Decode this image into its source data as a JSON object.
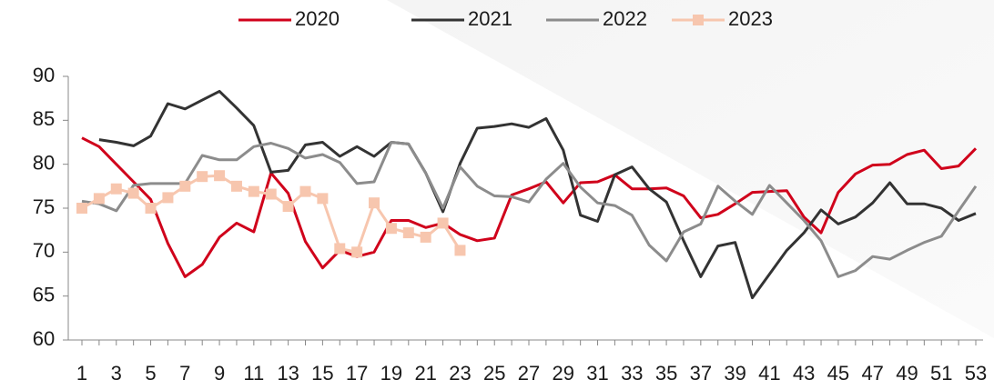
{
  "chart_data": {
    "type": "line",
    "categories": [
      1,
      null,
      3,
      null,
      5,
      null,
      7,
      null,
      9,
      null,
      11,
      null,
      13,
      null,
      15,
      null,
      17,
      null,
      19,
      null,
      21,
      null,
      23,
      null,
      25,
      null,
      27,
      null,
      29,
      null,
      31,
      null,
      33,
      null,
      35,
      null,
      37,
      null,
      39,
      null,
      41,
      null,
      43,
      null,
      45,
      null,
      47,
      null,
      49,
      null,
      51,
      null,
      53
    ],
    "ylim": [
      60,
      90
    ],
    "yticks": [
      60,
      65,
      70,
      75,
      80,
      85,
      90
    ],
    "grid": false,
    "legend": "top",
    "series": [
      {
        "name": "2020",
        "color": "#d0021b",
        "values": [
          83,
          82,
          80,
          78,
          76,
          71,
          67.2,
          68.6,
          71.7,
          73.3,
          72.3,
          79,
          76.7,
          71.2,
          68.2,
          70.2,
          69.5,
          70,
          73.6,
          73.6,
          72.8,
          73.3,
          72,
          71.3,
          71.6,
          76.5,
          77.2,
          78,
          75.6,
          77.9,
          78,
          78.8,
          77.2,
          77.2,
          77.3,
          76.4,
          73.9,
          74.3,
          75.5,
          76.8,
          76.9,
          77,
          74,
          72.2,
          76.8,
          78.9,
          79.9,
          80,
          81.1,
          81.6,
          79.5,
          79.8,
          81.8
        ]
      },
      {
        "name": "2021",
        "color": "#333333",
        "values": [
          null,
          82.8,
          82.5,
          82.1,
          83.2,
          86.9,
          86.3,
          87.3,
          88.3,
          86.4,
          84.4,
          79.1,
          79.3,
          82.2,
          82.5,
          80.9,
          82,
          80.9,
          82.5,
          82.3,
          79,
          74.6,
          80.1,
          84.1,
          84.3,
          84.6,
          84.2,
          85.2,
          81.6,
          74.2,
          73.5,
          78.8,
          79.7,
          77.2,
          75.7,
          71.3,
          67.2,
          70.7,
          71.1,
          64.8,
          67.5,
          70.2,
          72.2,
          74.8,
          73.2,
          74,
          75.6,
          77.9,
          75.5,
          75.5,
          75,
          73.6,
          74.4
        ]
      },
      {
        "name": "2022",
        "color": "#8c8c8c",
        "values": [
          75.8,
          75.5,
          74.7,
          77.6,
          77.8,
          77.8,
          77.8,
          81,
          80.5,
          80.5,
          82,
          82.4,
          81.8,
          80.7,
          81.1,
          80.2,
          77.8,
          78,
          82.5,
          82.3,
          79,
          75,
          79.7,
          77.5,
          76.4,
          76.3,
          75.7,
          78.3,
          80.1,
          77.4,
          75.6,
          75.3,
          74.2,
          70.8,
          69,
          72.3,
          73.2,
          77.5,
          75.8,
          74.3,
          77.6,
          75.6,
          73.6,
          71.3,
          67.2,
          67.9,
          69.5,
          69.2,
          70.2,
          71.1,
          71.8,
          74.7,
          77.5
        ]
      },
      {
        "name": "2023",
        "color": "#f7c6ae",
        "marker": "square",
        "values": [
          75,
          76.1,
          77.2,
          76.7,
          75,
          76.2,
          77.5,
          78.6,
          78.7,
          77.5,
          76.9,
          76.6,
          75.2,
          76.9,
          76.1,
          70.4,
          70,
          75.6,
          72.7,
          72.2,
          71.7,
          73.3,
          70.2,
          null,
          null,
          null,
          null,
          null,
          null,
          null,
          null,
          null,
          null,
          null,
          null,
          null,
          null,
          null,
          null,
          null,
          null,
          null,
          null,
          null,
          null,
          null,
          null,
          null,
          null,
          null,
          null,
          null,
          null
        ]
      }
    ]
  }
}
